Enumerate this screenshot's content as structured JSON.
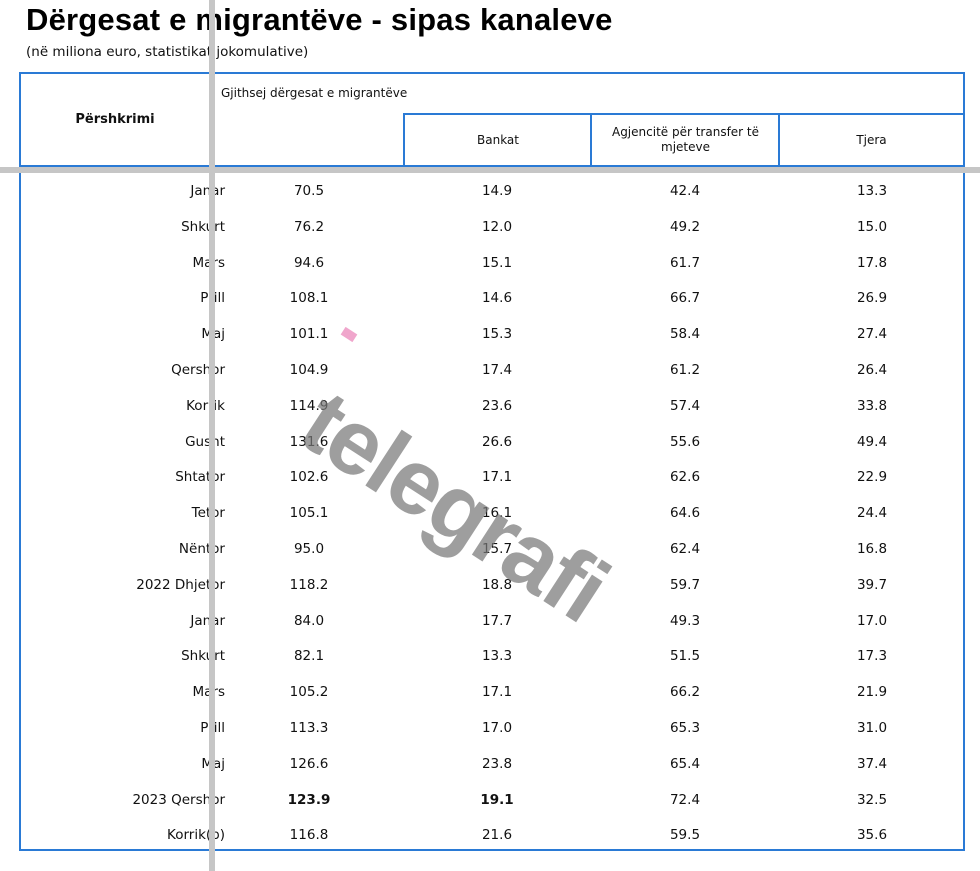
{
  "title": "Dërgesat e migrantëve - sipas kanaleve",
  "subtitle": "(në miliona euro, statistikat jokomulative)",
  "table": {
    "header_label": "Përshkrimi",
    "group_header": "Gjithsej dërgesat e migrantëve",
    "columns": [
      "Bankat",
      "Agjencitë për transfer të mjeteve",
      "Tjera"
    ],
    "rows": [
      {
        "label": "Janar",
        "total": "70.5",
        "bank": "14.9",
        "agency": "42.4",
        "other": "13.3"
      },
      {
        "label": "Shkurt",
        "total": "76.2",
        "bank": "12.0",
        "agency": "49.2",
        "other": "15.0"
      },
      {
        "label": "Mars",
        "total": "94.6",
        "bank": "15.1",
        "agency": "61.7",
        "other": "17.8"
      },
      {
        "label": "Prill",
        "total": "108.1",
        "bank": "14.6",
        "agency": "66.7",
        "other": "26.9"
      },
      {
        "label": "Maj",
        "total": "101.1",
        "bank": "15.3",
        "agency": "58.4",
        "other": "27.4"
      },
      {
        "label": "Qershor",
        "total": "104.9",
        "bank": "17.4",
        "agency": "61.2",
        "other": "26.4"
      },
      {
        "label": "Korrik",
        "total": "114.9",
        "bank": "23.6",
        "agency": "57.4",
        "other": "33.8"
      },
      {
        "label": "Gusht",
        "total": "131.6",
        "bank": "26.6",
        "agency": "55.6",
        "other": "49.4"
      },
      {
        "label": "Shtator",
        "total": "102.6",
        "bank": "17.1",
        "agency": "62.6",
        "other": "22.9"
      },
      {
        "label": "Tetor",
        "total": "105.1",
        "bank": "16.1",
        "agency": "64.6",
        "other": "24.4"
      },
      {
        "label": "Nëntor",
        "total": "95.0",
        "bank": "15.7",
        "agency": "62.4",
        "other": "16.8"
      },
      {
        "label": "2022 Dhjetor",
        "total": "118.2",
        "bank": "18.8",
        "agency": "59.7",
        "other": "39.7"
      },
      {
        "label": "Janar",
        "total": "84.0",
        "bank": "17.7",
        "agency": "49.3",
        "other": "17.0"
      },
      {
        "label": "Shkurt",
        "total": "82.1",
        "bank": "13.3",
        "agency": "51.5",
        "other": "17.3"
      },
      {
        "label": "Mars",
        "total": "105.2",
        "bank": "17.1",
        "agency": "66.2",
        "other": "21.9"
      },
      {
        "label": "Prill",
        "total": "113.3",
        "bank": "17.0",
        "agency": "65.3",
        "other": "31.0"
      },
      {
        "label": "Maj",
        "total": "126.6",
        "bank": "23.8",
        "agency": "65.4",
        "other": "37.4"
      },
      {
        "label": "2023 Qershor",
        "total": "123.9",
        "bank": "19.1",
        "agency": "72.4",
        "other": "32.5"
      },
      {
        "label": "Korrik(p)",
        "total": "116.8",
        "bank": "21.6",
        "agency": "59.5",
        "other": "35.6"
      }
    ]
  },
  "watermark": "telegrafi",
  "colors": {
    "border": "#2a7ad5",
    "guide_lines": "#c6c6c6",
    "watermark_dot": "#f0a6cc"
  }
}
